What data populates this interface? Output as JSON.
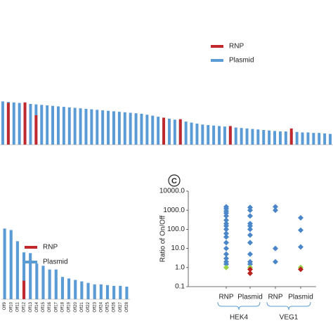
{
  "chart_data": [
    {
      "type": "bar",
      "categories": [
        null,
        null,
        null,
        null,
        null,
        null,
        null,
        null,
        null,
        null,
        null,
        null,
        null,
        null,
        null,
        null,
        null,
        null,
        null,
        null,
        null,
        null,
        null,
        null,
        null,
        null,
        null,
        null,
        null,
        null,
        null,
        null,
        null,
        null,
        null,
        null,
        null,
        null,
        null,
        null,
        null,
        null,
        null,
        null,
        null,
        null,
        null,
        null,
        null,
        null,
        null,
        null,
        null,
        null,
        null,
        null,
        null,
        null,
        null,
        null
      ],
      "series": [
        {
          "name": "RNP",
          "color": "#c0282d",
          "values": [
            null,
            85,
            null,
            null,
            86,
            null,
            60,
            null,
            null,
            null,
            null,
            null,
            null,
            null,
            null,
            null,
            null,
            null,
            null,
            null,
            null,
            null,
            null,
            null,
            null,
            null,
            null,
            null,
            null,
            55,
            null,
            null,
            52,
            null,
            null,
            null,
            null,
            null,
            null,
            null,
            null,
            38,
            null,
            null,
            null,
            null,
            null,
            null,
            null,
            null,
            null,
            null,
            33,
            null,
            null,
            null,
            null,
            null,
            null,
            null
          ]
        },
        {
          "name": "Plasmid",
          "color": "#5b9bd5",
          "values": [
            88,
            87,
            86,
            85,
            84,
            83,
            82,
            81,
            80,
            79,
            78,
            77,
            76,
            75,
            74,
            73,
            72,
            71,
            70,
            69,
            68,
            67,
            66,
            65,
            64,
            63,
            61,
            59,
            57,
            55,
            53,
            51,
            49,
            47,
            45,
            43,
            41,
            40,
            39,
            38,
            37,
            36,
            35,
            34,
            33,
            32,
            31,
            30,
            29,
            28,
            27,
            27,
            26,
            26,
            25,
            25,
            24,
            24,
            23,
            22
          ]
        }
      ],
      "ylim": [
        0,
        100
      ],
      "legend": "top-right"
    },
    {
      "type": "bar",
      "categories": [
        "Off9",
        "Off10",
        "Off11",
        "Off12",
        "Off13",
        "Off14",
        "Off15",
        "Off16",
        "Off17",
        "Off18",
        "Off19",
        "Off20",
        "Off21",
        "Off22",
        "Off23",
        "Off24",
        "Off25",
        "Off26",
        "Off27",
        "Off28"
      ],
      "series": [
        {
          "name": "RNP",
          "color": "#c0282d",
          "values": [
            null,
            null,
            null,
            25,
            null,
            null,
            null,
            null,
            null,
            null,
            null,
            null,
            null,
            null,
            null,
            null,
            null,
            null,
            null,
            null
          ]
        },
        {
          "name": "Plasmid",
          "color": "#5b9bd5",
          "values": [
            95,
            93,
            78,
            63,
            62,
            48,
            45,
            40,
            40,
            30,
            28,
            26,
            24,
            22,
            20,
            20,
            19,
            18,
            18,
            17
          ]
        }
      ],
      "ylim": [
        0,
        100
      ],
      "legend": "top-left"
    },
    {
      "type": "scatter",
      "panel": "C",
      "ylabel": "Ratio of On/Off",
      "categories": [
        "RNP",
        "Plasmid",
        "RNP",
        "Plasmid"
      ],
      "groups": [
        "HEK4",
        "VEG1"
      ],
      "log_y": true,
      "ylim": [
        0.1,
        10000
      ],
      "yticks": [
        0.1,
        {
          "value": 1,
          "label": "1.0"
        },
        {
          "value": 10,
          "label": "10.0"
        },
        {
          "value": 100,
          "label": "100.0"
        },
        {
          "value": 1000,
          "label": "1000.0"
        },
        {
          "value": 10000,
          "label": "10000.0"
        }
      ],
      "series": [
        {
          "color": "#4a86c8",
          "values": [
            [
              1500,
              1200,
              900,
              700,
              500,
              300,
              200,
              150,
              100,
              60,
              40,
              20,
              10,
              5,
              3,
              2,
              1.5
            ],
            [
              1400,
              1000,
              500,
              200,
              150,
              100,
              50,
              20,
              5,
              2,
              1.5
            ],
            [
              1500,
              1000,
              10,
              2
            ],
            [
              400,
              90,
              12
            ]
          ]
        },
        {
          "color": "#9ad34a",
          "values": [
            [
              1
            ],
            [
              1
            ],
            [],
            [
              1
            ]
          ]
        },
        {
          "color": "#b8231f",
          "values": [
            [],
            [
              0.8,
              0.5
            ],
            [],
            [
              0.8
            ]
          ]
        }
      ]
    }
  ]
}
